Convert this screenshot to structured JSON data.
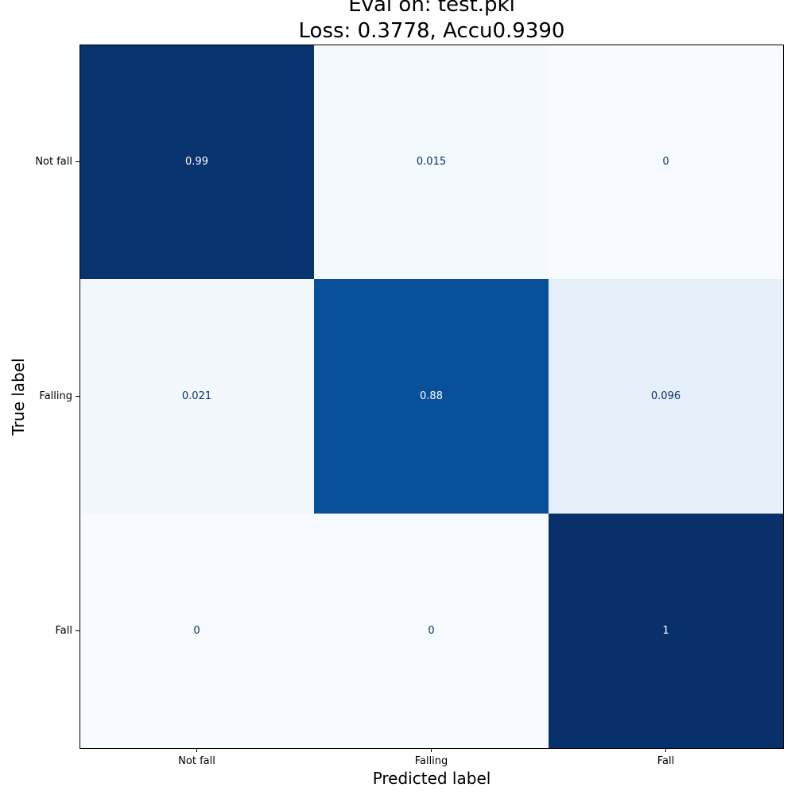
{
  "chart_data": {
    "type": "heatmap",
    "title": [
      "Eval on: test.pkl",
      "Loss: 0.3778, Accu0.9390"
    ],
    "xlabel": "Predicted label",
    "ylabel": "True label",
    "x_categories": [
      "Not fall",
      "Falling",
      "Fall"
    ],
    "y_categories": [
      "Not fall",
      "Falling",
      "Fall"
    ],
    "values": [
      [
        0.99,
        0.015,
        0
      ],
      [
        0.021,
        0.88,
        0.096
      ],
      [
        0,
        0,
        1
      ]
    ],
    "cell_labels": [
      [
        "0.99",
        "0.015",
        "0"
      ],
      [
        "0.021",
        "0.88",
        "0.096"
      ],
      [
        "0",
        "0",
        "1"
      ]
    ],
    "colormap": "Blues",
    "vmin": 0,
    "vmax": 1,
    "grid": false,
    "colors": {
      "low": "#f7fbff",
      "high": "#08306b",
      "text_on_light": "#08306b",
      "text_on_dark": "#ffffff"
    }
  }
}
